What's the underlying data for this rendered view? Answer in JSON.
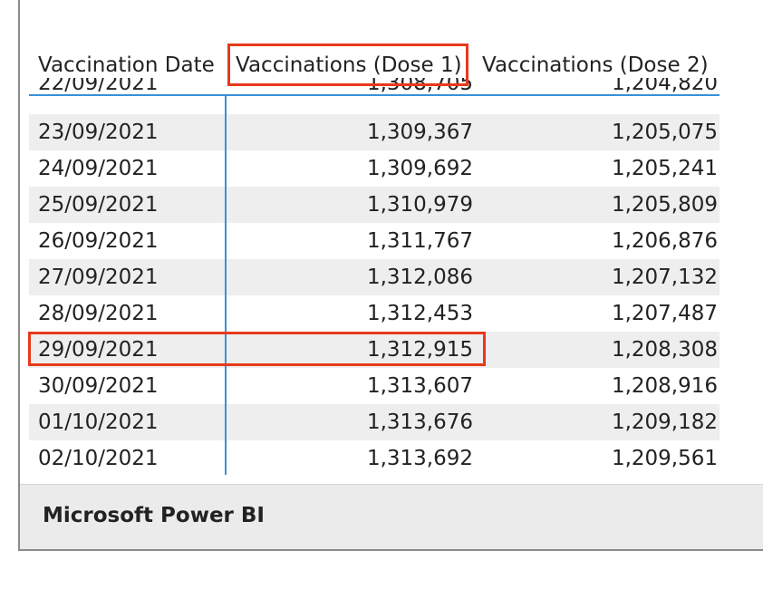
{
  "table": {
    "headers": {
      "date": "Vaccination Date",
      "dose1": "Vaccinations (Dose 1)",
      "dose2": "Vaccinations (Dose 2)"
    },
    "rows": [
      {
        "date": "22/09/2021",
        "dose1": "1,308,705",
        "dose2": "1,204,820"
      },
      {
        "date": "23/09/2021",
        "dose1": "1,309,367",
        "dose2": "1,205,075"
      },
      {
        "date": "24/09/2021",
        "dose1": "1,309,692",
        "dose2": "1,205,241"
      },
      {
        "date": "25/09/2021",
        "dose1": "1,310,979",
        "dose2": "1,205,809"
      },
      {
        "date": "26/09/2021",
        "dose1": "1,311,767",
        "dose2": "1,206,876"
      },
      {
        "date": "27/09/2021",
        "dose1": "1,312,086",
        "dose2": "1,207,132"
      },
      {
        "date": "28/09/2021",
        "dose1": "1,312,453",
        "dose2": "1,207,487"
      },
      {
        "date": "29/09/2021",
        "dose1": "1,312,915",
        "dose2": "1,208,308"
      },
      {
        "date": "30/09/2021",
        "dose1": "1,313,607",
        "dose2": "1,208,916"
      },
      {
        "date": "01/10/2021",
        "dose1": "1,313,676",
        "dose2": "1,209,182"
      },
      {
        "date": "02/10/2021",
        "dose1": "1,313,692",
        "dose2": "1,209,561"
      }
    ]
  },
  "footer": {
    "title": "Microsoft Power BI"
  },
  "colors": {
    "highlight": "#e8391c",
    "accent_line": "#3b8fd9",
    "row_shade": "#eeeeee",
    "footer_bg": "#ebebeb"
  }
}
